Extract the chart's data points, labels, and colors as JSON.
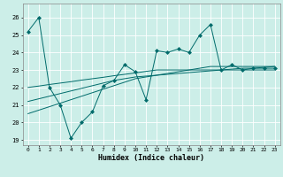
{
  "title": "",
  "xlabel": "Humidex (Indice chaleur)",
  "ylabel": "",
  "background_color": "#cceee8",
  "grid_color": "#ffffff",
  "line_color": "#006b6b",
  "xlim": [
    -0.5,
    23.5
  ],
  "ylim": [
    18.7,
    26.8
  ],
  "yticks": [
    19,
    20,
    21,
    22,
    23,
    24,
    25,
    26
  ],
  "xticks": [
    0,
    1,
    2,
    3,
    4,
    5,
    6,
    7,
    8,
    9,
    10,
    11,
    12,
    13,
    14,
    15,
    16,
    17,
    18,
    19,
    20,
    21,
    22,
    23
  ],
  "series_main": [
    25.2,
    26.0,
    22.0,
    21.0,
    19.1,
    20.0,
    20.6,
    22.1,
    22.4,
    23.3,
    22.9,
    21.3,
    24.1,
    24.0,
    24.2,
    24.0,
    25.0,
    25.6,
    23.0,
    23.3,
    23.0,
    23.1,
    23.1,
    23.1
  ],
  "series_linear1": [
    22.0,
    22.08,
    22.17,
    22.25,
    22.33,
    22.42,
    22.5,
    22.58,
    22.67,
    22.75,
    22.83,
    22.92,
    23.0,
    23.0,
    23.0,
    23.0,
    23.0,
    23.0,
    23.0,
    23.0,
    23.0,
    23.0,
    23.0,
    23.0
  ],
  "series_linear2": [
    21.2,
    21.35,
    21.5,
    21.65,
    21.8,
    21.95,
    22.1,
    22.25,
    22.4,
    22.5,
    22.6,
    22.65,
    22.7,
    22.75,
    22.8,
    22.85,
    22.9,
    22.95,
    23.0,
    23.05,
    23.1,
    23.1,
    23.15,
    23.2
  ],
  "series_linear3": [
    20.5,
    20.7,
    20.9,
    21.1,
    21.3,
    21.5,
    21.7,
    21.9,
    22.1,
    22.3,
    22.5,
    22.6,
    22.7,
    22.8,
    22.9,
    23.0,
    23.1,
    23.2,
    23.2,
    23.2,
    23.2,
    23.2,
    23.2,
    23.2
  ]
}
